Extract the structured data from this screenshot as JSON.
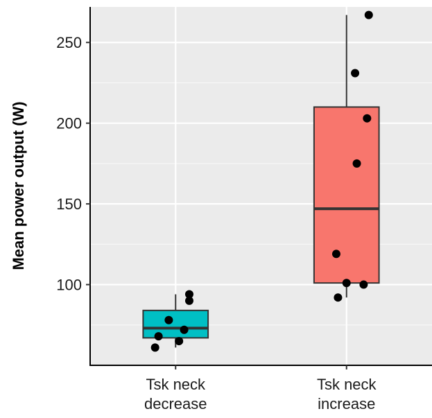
{
  "chart_data": {
    "type": "boxplot",
    "xlabel": "",
    "ylabel": "Mean power output (W)",
    "ylim": [
      50,
      272
    ],
    "yticks": [
      100,
      150,
      200,
      250
    ],
    "grid": true,
    "panel_background": "#EBEBEB",
    "categories": [
      {
        "label_line1": "Tsk neck",
        "label_line2": "decrease"
      },
      {
        "label_line1": "Tsk neck",
        "label_line2": "increase"
      }
    ],
    "boxes": [
      {
        "name": "Tsk neck decrease",
        "color": "#00BFC4",
        "whisker_low": 61,
        "q1": 67,
        "median": 73,
        "q3": 84,
        "whisker_high": 94,
        "points": [
          {
            "jitter": -0.12,
            "y": 61
          },
          {
            "jitter": -0.1,
            "y": 68
          },
          {
            "jitter": 0.02,
            "y": 65
          },
          {
            "jitter": 0.05,
            "y": 72
          },
          {
            "jitter": -0.04,
            "y": 78
          },
          {
            "jitter": 0.08,
            "y": 90
          },
          {
            "jitter": 0.08,
            "y": 94
          }
        ]
      },
      {
        "name": "Tsk neck increase",
        "color": "#F8766D",
        "whisker_low": 92,
        "q1": 101,
        "median": 147,
        "q3": 210,
        "whisker_high": 267,
        "points": [
          {
            "jitter": -0.05,
            "y": 92
          },
          {
            "jitter": 0.0,
            "y": 101
          },
          {
            "jitter": 0.1,
            "y": 100
          },
          {
            "jitter": -0.06,
            "y": 119
          },
          {
            "jitter": 0.06,
            "y": 175
          },
          {
            "jitter": 0.12,
            "y": 203
          },
          {
            "jitter": 0.05,
            "y": 231
          },
          {
            "jitter": 0.13,
            "y": 267
          }
        ]
      }
    ]
  }
}
